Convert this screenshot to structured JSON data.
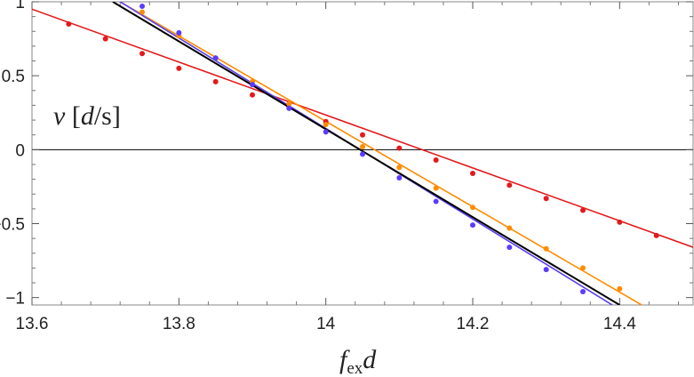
{
  "chart_data": {
    "type": "line",
    "title": "",
    "xlabel": "f_ex d",
    "ylabel": "v [d/s]",
    "xlim": [
      13.6,
      14.5
    ],
    "ylim": [
      -1.05,
      1.0
    ],
    "grid": false,
    "x_ticks": [
      13.6,
      13.8,
      14.0,
      14.2,
      14.4
    ],
    "x_tick_labels": [
      "13.6",
      "13.8",
      "14",
      "14.2",
      "14.4"
    ],
    "y_ticks": [
      -1,
      -0.5,
      0,
      0.5,
      1
    ],
    "y_tick_labels": [
      "−1",
      "−0.5",
      "0",
      "0.5",
      "1"
    ],
    "series": [
      {
        "color": "#e31a1c",
        "line": [
          [
            13.6,
            0.95
          ],
          [
            14.5,
            -0.66
          ]
        ],
        "x": [
          13.65,
          13.7,
          13.75,
          13.8,
          13.85,
          13.9,
          13.95,
          14.0,
          14.05,
          14.1,
          14.15,
          14.2,
          14.25,
          14.3,
          14.35,
          14.4,
          14.45
        ],
        "y": [
          0.85,
          0.75,
          0.65,
          0.55,
          0.46,
          0.37,
          0.28,
          0.19,
          0.1,
          0.01,
          -0.07,
          -0.16,
          -0.24,
          -0.33,
          -0.41,
          -0.49,
          -0.58
        ]
      },
      {
        "color": "#ff8c00",
        "line": [
          [
            13.72,
            1.0
          ],
          [
            14.43,
            -1.05
          ]
        ],
        "x": [
          13.75,
          13.8,
          13.85,
          13.9,
          13.95,
          14.0,
          14.05,
          14.1,
          14.15,
          14.2,
          14.25,
          14.3,
          14.35,
          14.4
        ],
        "y": [
          0.93,
          0.77,
          0.62,
          0.46,
          0.31,
          0.17,
          0.02,
          -0.12,
          -0.26,
          -0.39,
          -0.53,
          -0.67,
          -0.8,
          -0.94
        ]
      },
      {
        "color": "#e8e000",
        "line": [
          [
            13.72,
            1.0
          ],
          [
            14.39,
            -1.05
          ]
        ],
        "x": [],
        "y": []
      },
      {
        "color": "#5a3cff",
        "line": [
          [
            13.72,
            1.0
          ],
          [
            14.39,
            -1.05
          ]
        ],
        "x": [
          13.75,
          13.8,
          13.85,
          13.9,
          13.95,
          14.0,
          14.05,
          14.1,
          14.15,
          14.2,
          14.25,
          14.3,
          14.35
        ],
        "y": [
          0.97,
          0.79,
          0.62,
          0.44,
          0.28,
          0.12,
          -0.03,
          -0.19,
          -0.35,
          -0.51,
          -0.66,
          -0.81,
          -0.96
        ]
      },
      {
        "color": "#000000",
        "line": [
          [
            13.71,
            1.0
          ],
          [
            14.4,
            -1.05
          ]
        ],
        "x": [],
        "y": []
      }
    ]
  }
}
